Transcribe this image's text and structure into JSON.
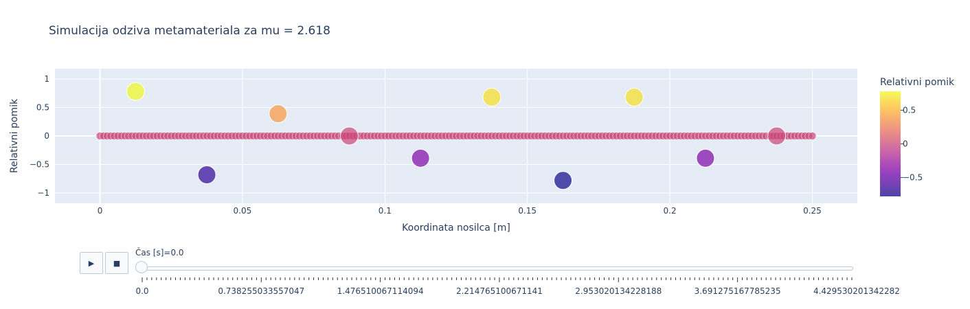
{
  "chart_data": {
    "type": "scatter",
    "title": "Simulacija odziva metamateriala za mu = 2.618",
    "xlabel": "Koordinata nosilca [m]",
    "ylabel": "Relativni pomik",
    "xlim": [
      -0.0158,
      0.2658
    ],
    "ylim": [
      -1.18,
      1.18
    ],
    "x_ticks": [
      0,
      0.05,
      0.1,
      0.15,
      0.2,
      0.25
    ],
    "x_tick_labels": [
      "0",
      "0.05",
      "0.1",
      "0.15",
      "0.2",
      "0.25"
    ],
    "y_ticks": [
      1,
      0.5,
      0,
      -0.5,
      -1
    ],
    "y_tick_labels": [
      "1",
      "0.5",
      "0",
      "−0.5",
      "−1"
    ],
    "grid": true,
    "beam_series": {
      "x_start": 0,
      "x_end": 0.25,
      "count": 201,
      "y": 0
    },
    "mass_series": {
      "x": [
        0.0125,
        0.0375,
        0.0625,
        0.0875,
        0.1125,
        0.1375,
        0.1625,
        0.1875,
        0.2125,
        0.2375
      ],
      "y": [
        0.78,
        -0.68,
        0.39,
        0.0,
        -0.39,
        0.68,
        -0.78,
        0.68,
        -0.39,
        0.0
      ]
    },
    "colorbar": {
      "title": "Relativni pomik",
      "cmin": -0.78,
      "cmax": 0.78,
      "colorscale": [
        "#0d0887",
        "#46039f",
        "#7201a8",
        "#9c179e",
        "#bd3786",
        "#d8576b",
        "#ed7953",
        "#fb9f3a",
        "#fdca26",
        "#f0f921"
      ],
      "ticks": [
        0.5,
        0,
        -0.5
      ],
      "tick_labels": [
        "0.5",
        "0",
        "−0.5"
      ]
    }
  },
  "slider": {
    "current_label": "Čas [s]=0.0",
    "play_icon": "▶",
    "stop_icon": "■",
    "tick_labels": [
      "0.0",
      "0.738255033557047",
      "1.476510067114094",
      "2.214765100671141",
      "2.953020134228188",
      "3.691275167785235",
      "4.429530201342282"
    ],
    "step_count": 150
  }
}
